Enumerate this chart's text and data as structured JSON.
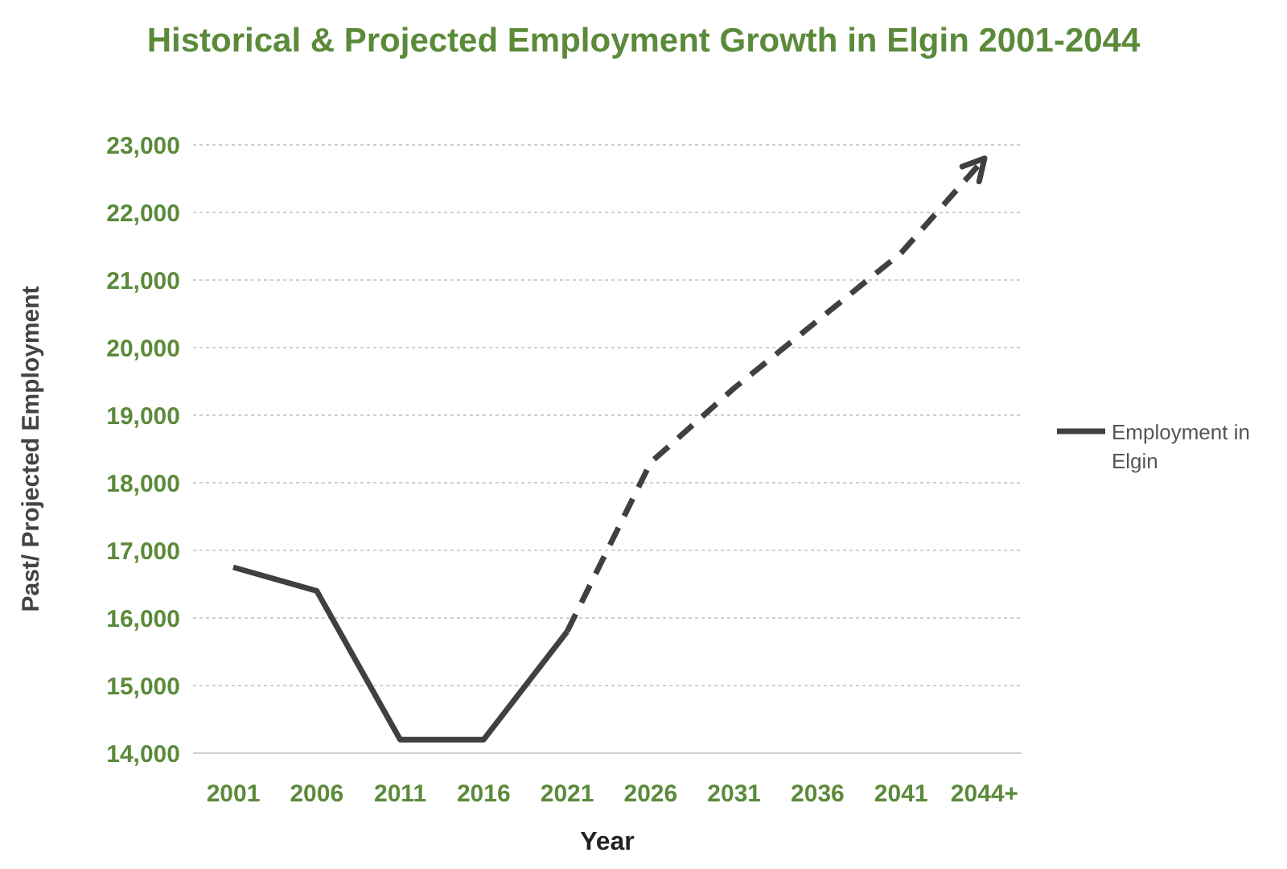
{
  "chart_data": {
    "type": "line",
    "title": "Historical & Projected Employment Growth in Elgin 2001-2044",
    "xlabel": "Year",
    "ylabel": "Past/ Projected Employment",
    "categories": [
      "2001",
      "2006",
      "2011",
      "2016",
      "2021",
      "2026",
      "2031",
      "2036",
      "2041",
      "2044+"
    ],
    "series": [
      {
        "name": "Employment in Elgin",
        "color": "#404040",
        "line_style": "solid",
        "values": [
          16750,
          16400,
          14200,
          14200,
          15800,
          null,
          null,
          null,
          null,
          null
        ]
      },
      {
        "color": "#404040",
        "line_style": "dashed",
        "values": [
          null,
          null,
          null,
          null,
          15800,
          18300,
          19400,
          20400,
          21400,
          22800
        ]
      }
    ],
    "ylim": [
      14000,
      23000
    ],
    "yticks": [
      {
        "value": 14000,
        "label": "14,000"
      },
      {
        "value": 15000,
        "label": "15,000"
      },
      {
        "value": 16000,
        "label": "16,000"
      },
      {
        "value": 17000,
        "label": "17,000"
      },
      {
        "value": 18000,
        "label": "18,000"
      },
      {
        "value": 19000,
        "label": "19,000"
      },
      {
        "value": 20000,
        "label": "20,000"
      },
      {
        "value": 21000,
        "label": "21,000"
      },
      {
        "value": 22000,
        "label": "22,000"
      },
      {
        "value": 23000,
        "label": "23,000"
      }
    ],
    "grid": "y",
    "legend": "right",
    "marker": "none"
  }
}
